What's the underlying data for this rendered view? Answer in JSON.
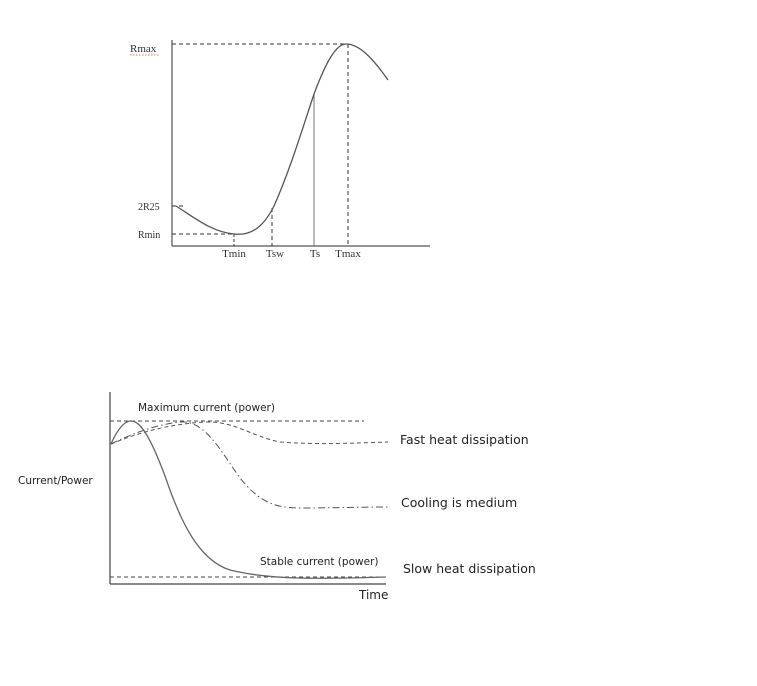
{
  "chart_data": [
    {
      "type": "line",
      "title": "",
      "xlabel": "",
      "ylabel": "",
      "y_levels": {
        "Rmax": "Rmax",
        "2R25": "2R25",
        "Rmin": "Rmin"
      },
      "x_ticks": [
        "Tmin",
        "Tsw",
        "Ts",
        "Tmax"
      ],
      "curve": "resistance falls from 2R25 to Rmin at Tmin, then rises steeply through Tsw and Ts to Rmax at Tmax, then decreases",
      "grid": false
    },
    {
      "type": "line",
      "title": "",
      "xlabel": "Time",
      "ylabel": "Current/Power",
      "reference_lines": {
        "maximum": "Maximum current (power)",
        "stable": "Stable current (power)"
      },
      "series": [
        {
          "name": "Fast heat dissipation",
          "style": "dashed"
        },
        {
          "name": "Cooling is medium",
          "style": "dash-dot"
        },
        {
          "name": "Slow heat dissipation",
          "style": "solid"
        }
      ],
      "grid": false
    }
  ]
}
